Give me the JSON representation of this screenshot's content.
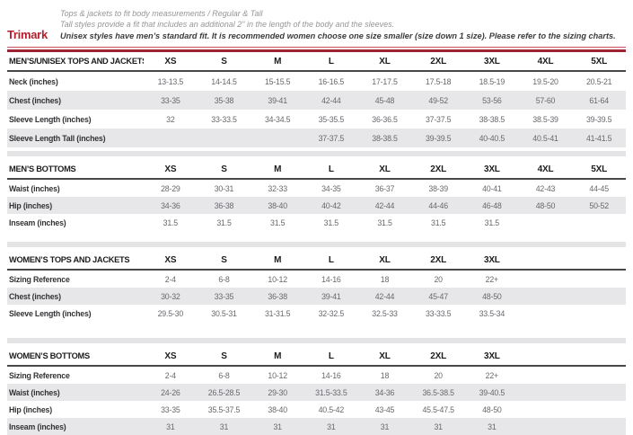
{
  "header": {
    "brand": "Trimark",
    "line1": "Tops & jackets to fit body measurements / Regular & Tall",
    "line2": "Tall styles provide a fit that includes an additional 2\" in the length of the body and the sleeves.",
    "line3": "Unisex styles have men’s standard fit. It is recommended women choose one size smaller (size down 1 size).  Please refer to the sizing charts."
  },
  "colors": {
    "brand_red": "#b41f2e",
    "rule_top_red": "#c95360",
    "rule_bottom_red": "#9e2433",
    "row_alt_gray": "#e7e7e9",
    "header_border": "#48484a",
    "value_text": "#68696d"
  },
  "tables": [
    {
      "title": "MEN’S/UNISEX TOPS AND JACKETS",
      "sizes": [
        "XS",
        "S",
        "M",
        "L",
        "XL",
        "2XL",
        "3XL",
        "4XL",
        "5XL"
      ],
      "rows": [
        {
          "label": "Neck (inches)",
          "values": [
            "13-13.5",
            "14-14.5",
            "15-15.5",
            "16-16.5",
            "17-17.5",
            "17.5-18",
            "18.5-19",
            "19.5-20",
            "20.5-21"
          ]
        },
        {
          "label": "Chest (inches)",
          "values": [
            "33-35",
            "35-38",
            "39-41",
            "42-44",
            "45-48",
            "49-52",
            "53-56",
            "57-60",
            "61-64"
          ]
        },
        {
          "label": "Sleeve Length (inches)",
          "values": [
            "32",
            "33-33.5",
            "34-34.5",
            "35-35.5",
            "36-36.5",
            "37-37.5",
            "38-38.5",
            "38.5-39",
            "39-39.5"
          ]
        },
        {
          "label": "Sleeve Length Tall (inches)",
          "values": [
            "",
            "",
            "",
            "37-37.5",
            "38-38.5",
            "39-39.5",
            "40-40.5",
            "40.5-41",
            "41-41.5"
          ]
        }
      ]
    },
    {
      "title": "MEN’S BOTTOMS",
      "sizes": [
        "XS",
        "S",
        "M",
        "L",
        "XL",
        "2XL",
        "3XL",
        "4XL",
        "5XL"
      ],
      "rows": [
        {
          "label": "Waist (inches)",
          "values": [
            "28-29",
            "30-31",
            "32-33",
            "34-35",
            "36-37",
            "38-39",
            "40-41",
            "42-43",
            "44-45"
          ]
        },
        {
          "label": "Hip (inches)",
          "values": [
            "34-36",
            "36-38",
            "38-40",
            "40-42",
            "42-44",
            "44-46",
            "46-48",
            "48-50",
            "50-52"
          ]
        },
        {
          "label": "Inseam (inches)",
          "values": [
            "31.5",
            "31.5",
            "31.5",
            "31.5",
            "31.5",
            "31.5",
            "31.5",
            "",
            ""
          ]
        }
      ]
    },
    {
      "title": "WOMEN’S TOPS AND JACKETS",
      "sizes": [
        "XS",
        "S",
        "M",
        "L",
        "XL",
        "2XL",
        "3XL",
        "",
        ""
      ],
      "rows": [
        {
          "label": "Sizing Reference",
          "values": [
            "2-4",
            "6-8",
            "10-12",
            "14-16",
            "18",
            "20",
            "22+",
            "",
            ""
          ]
        },
        {
          "label": "Chest (inches)",
          "values": [
            "30-32",
            "33-35",
            "36-38",
            "39-41",
            "42-44",
            "45-47",
            "48-50",
            "",
            ""
          ]
        },
        {
          "label": "Sleeve Length (inches)",
          "values": [
            "29.5-30",
            "30.5-31",
            "31-31.5",
            "32-32.5",
            "32.5-33",
            "33-33.5",
            "33.5-34",
            "",
            ""
          ]
        }
      ]
    },
    {
      "title": "WOMEN’S BOTTOMS",
      "sizes": [
        "XS",
        "S",
        "M",
        "L",
        "XL",
        "2XL",
        "3XL",
        "",
        ""
      ],
      "rows": [
        {
          "label": "Sizing Reference",
          "values": [
            "2-4",
            "6-8",
            "10-12",
            "14-16",
            "18",
            "20",
            "22+",
            "",
            ""
          ]
        },
        {
          "label": "Waist (inches)",
          "values": [
            "24-26",
            "26.5-28.5",
            "29-30",
            "31.5-33.5",
            "34-36",
            "36.5-38.5",
            "39-40.5",
            "",
            ""
          ]
        },
        {
          "label": "Hip (inches)",
          "values": [
            "33-35",
            "35.5-37.5",
            "38-40",
            "40.5-42",
            "43-45",
            "45.5-47.5",
            "48-50",
            "",
            ""
          ]
        },
        {
          "label": "Inseam (inches)",
          "values": [
            "31",
            "31",
            "31",
            "31",
            "31",
            "31",
            "31",
            "",
            ""
          ]
        }
      ]
    }
  ]
}
